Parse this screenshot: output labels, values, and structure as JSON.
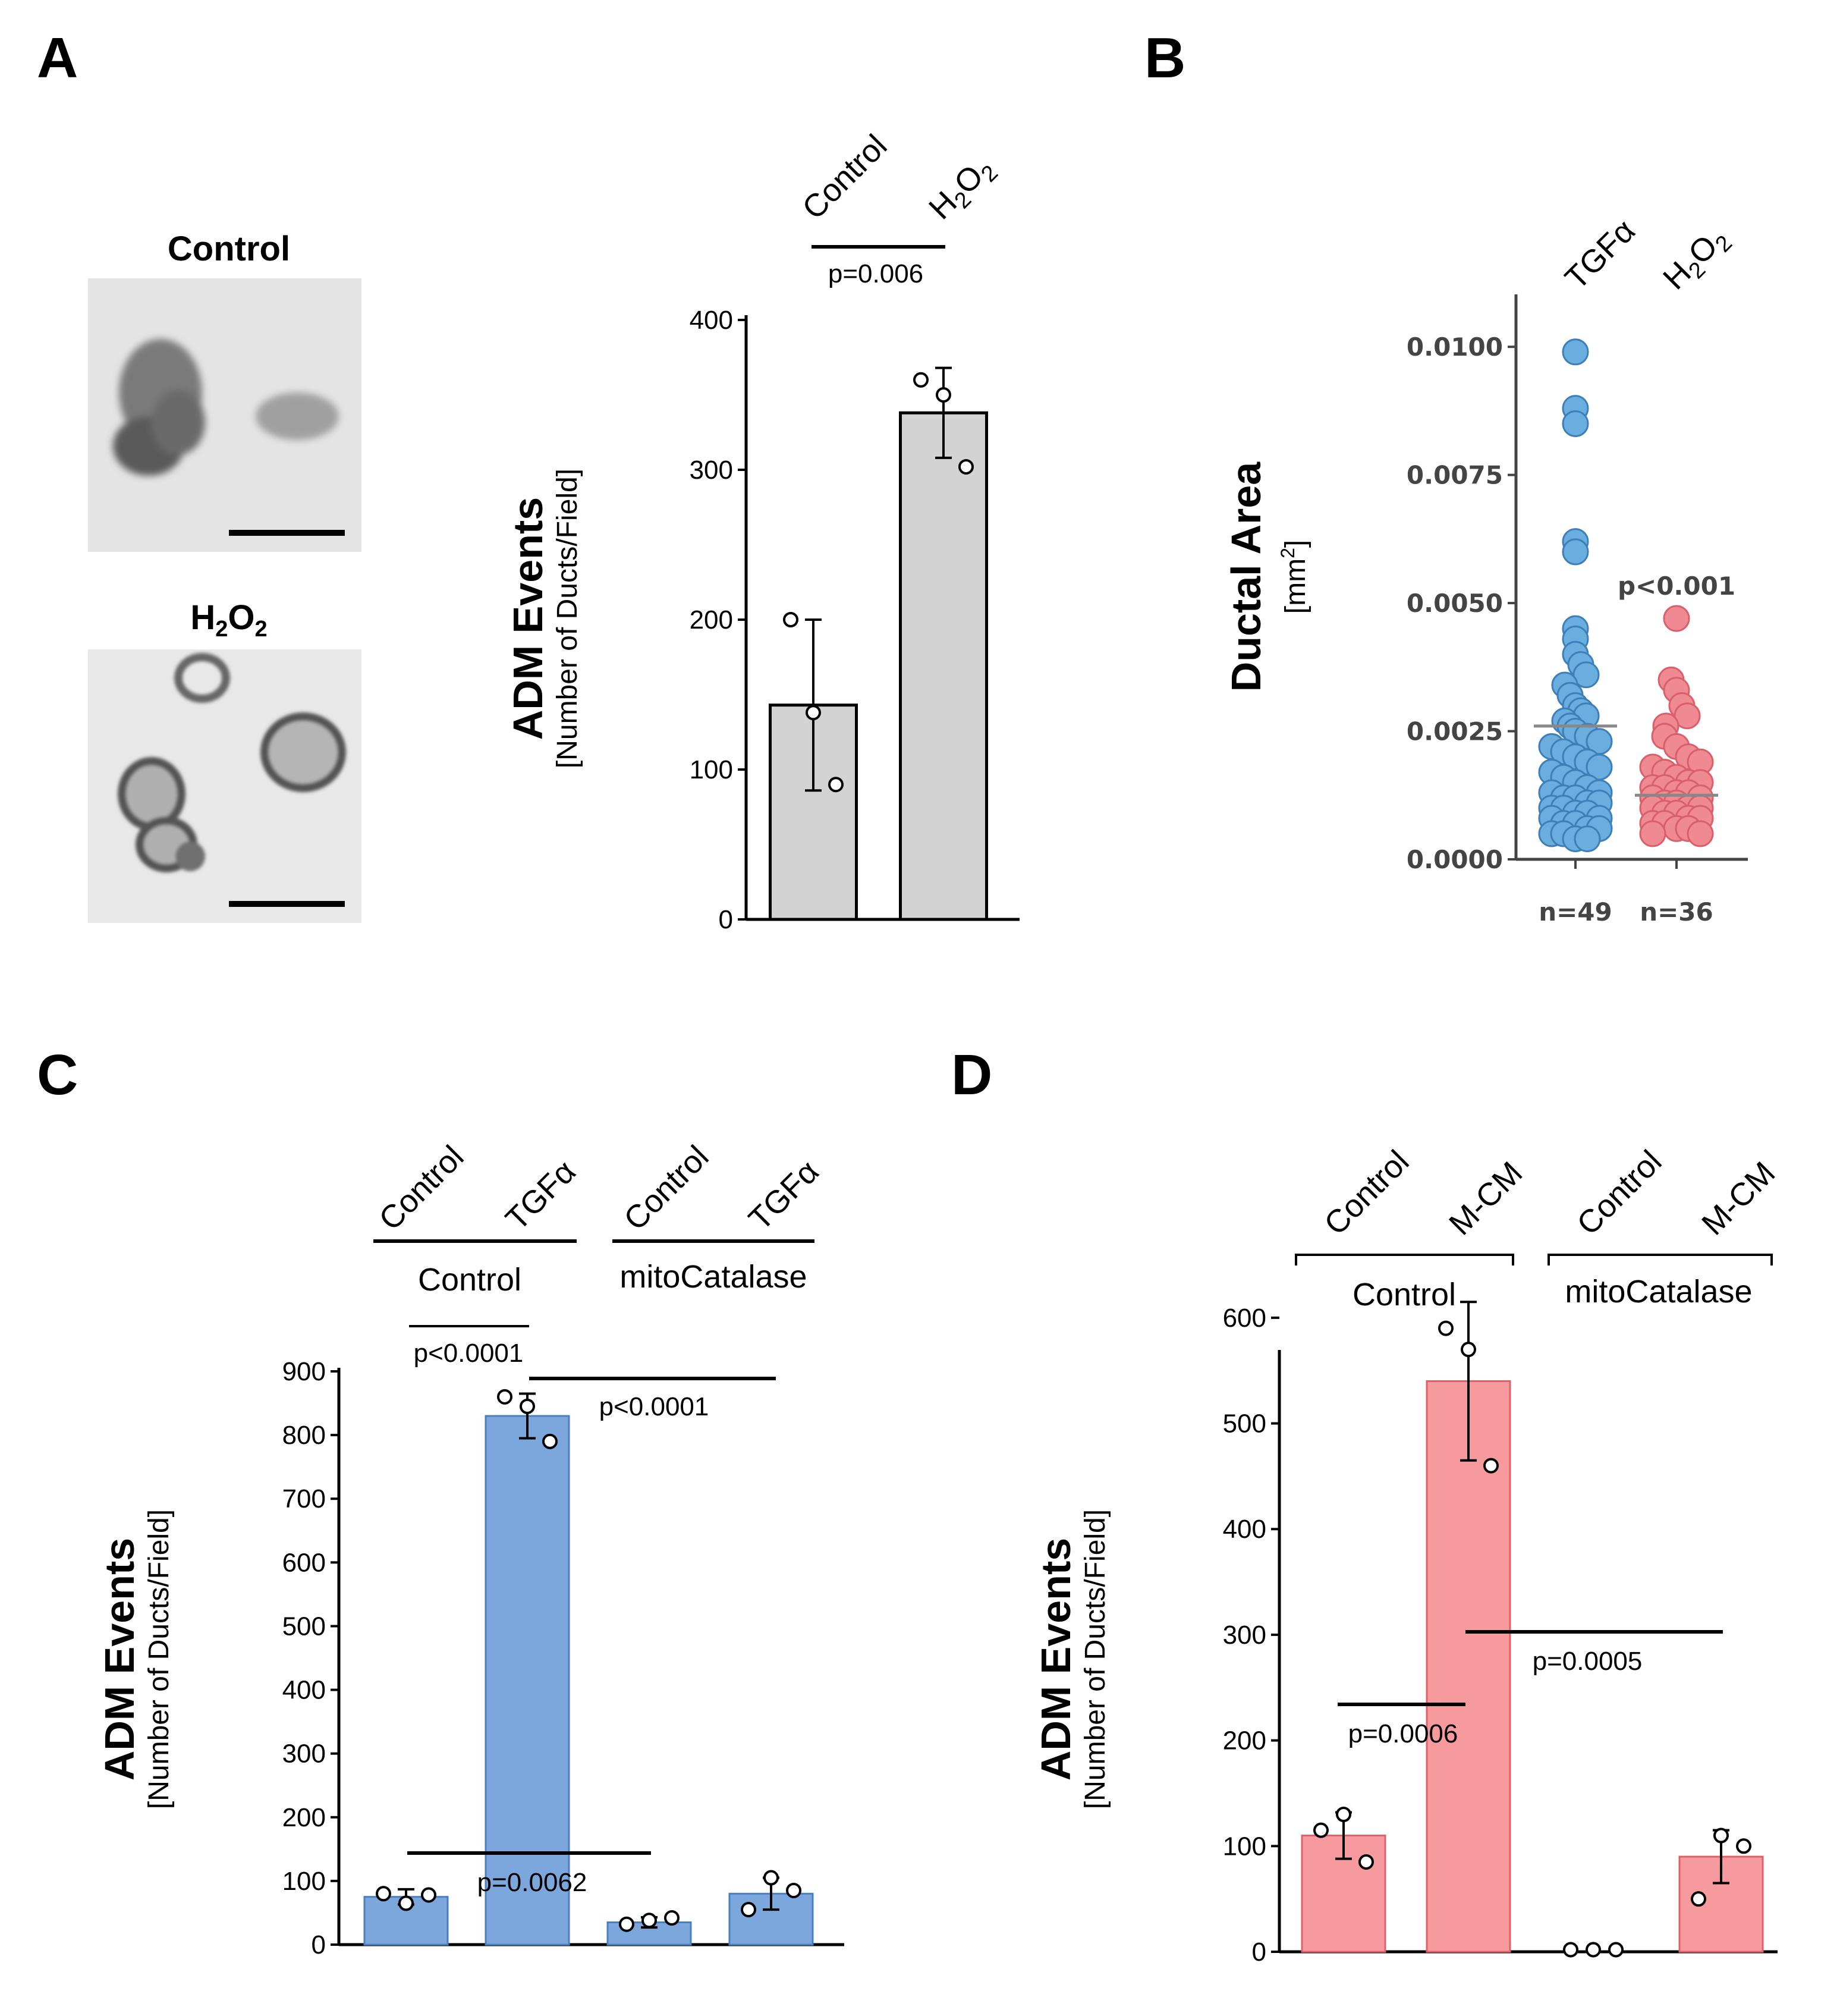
{
  "panels": {
    "a": {
      "letter": "A",
      "images": [
        {
          "label_main": "Control",
          "label_sub": ""
        },
        {
          "label_main": "H",
          "label_sub1": "2",
          "label_mid": "O",
          "label_sub2": "2"
        }
      ]
    },
    "b": {
      "letter": "B"
    },
    "c": {
      "letter": "C"
    },
    "d": {
      "letter": "D"
    }
  },
  "chart_data": [
    {
      "id": "A",
      "type": "bar",
      "categories": [
        "Control",
        "H2O2"
      ],
      "category_labels": [
        {
          "text": "Control"
        },
        {
          "main1": "H",
          "sub1": "2",
          "main2": "O",
          "sub2": "2"
        }
      ],
      "values": [
        143,
        338
      ],
      "errors": [
        57,
        30
      ],
      "points": [
        [
          200,
          138,
          90
        ],
        [
          360,
          350,
          302
        ]
      ],
      "ylim": [
        0,
        400
      ],
      "yticks": [
        0,
        100,
        200,
        300,
        400
      ],
      "ylabel": "ADM Events",
      "ylabel_sub": "[Number of Ducts/Field]",
      "bar_color": "#d3d3d3",
      "comparisons": [
        {
          "text": "p=0.006"
        }
      ]
    },
    {
      "id": "B",
      "type": "scatter",
      "categories": [
        "TGFα",
        "H2O2"
      ],
      "category_labels": [
        {
          "text": "TGFα"
        },
        {
          "main1": "H",
          "sub1": "2",
          "main2": "O",
          "sub2": "2"
        }
      ],
      "ylim": [
        0,
        0.011
      ],
      "yticks": [
        "0.0000",
        "0.0025",
        "0.0050",
        "0.0075",
        "0.0100"
      ],
      "ytick_values": [
        0,
        0.0025,
        0.005,
        0.0075,
        0.01
      ],
      "ylabel": "Ductal Area",
      "ylabel_unit_main": "[mm",
      "ylabel_unit_sup": "2",
      "ylabel_unit_end": "]",
      "medians": [
        0.0026,
        0.00125
      ],
      "counts": [
        "n=49",
        "n=36"
      ],
      "pvalue": "p<0.001",
      "colors": [
        "#6aaee0",
        "#f08a92"
      ],
      "series": [
        {
          "values": [
            0.0099,
            0.0088,
            0.0085,
            0.0062,
            0.006,
            0.0045,
            0.0043,
            0.004,
            0.0038,
            0.0036,
            0.0034,
            0.0032,
            0.003,
            0.0029,
            0.0028,
            0.0027,
            0.0026,
            0.0025,
            0.0024,
            0.0023,
            0.0022,
            0.0021,
            0.002,
            0.0019,
            0.0018,
            0.0017,
            0.0016,
            0.0015,
            0.0014,
            0.0013,
            0.0013,
            0.0012,
            0.0012,
            0.0011,
            0.0011,
            0.001,
            0.001,
            0.0009,
            0.0009,
            0.0008,
            0.0008,
            0.0007,
            0.0007,
            0.0006,
            0.0006,
            0.0005,
            0.0005,
            0.0004,
            0.0004
          ]
        },
        {
          "values": [
            0.0047,
            0.0035,
            0.0033,
            0.003,
            0.0028,
            0.0026,
            0.0024,
            0.0022,
            0.002,
            0.0019,
            0.0018,
            0.0017,
            0.0016,
            0.0015,
            0.0015,
            0.0014,
            0.0014,
            0.0013,
            0.0013,
            0.0012,
            0.0012,
            0.0011,
            0.0011,
            0.001,
            0.001,
            0.001,
            0.0009,
            0.0009,
            0.0008,
            0.0008,
            0.0007,
            0.0007,
            0.0006,
            0.0006,
            0.0005,
            0.0005
          ]
        }
      ]
    },
    {
      "id": "C",
      "type": "bar",
      "categories": [
        "Control",
        "TGFα",
        "Control",
        "TGFα"
      ],
      "groups": [
        "Control",
        "mitoCatalase"
      ],
      "values": [
        75,
        830,
        35,
        80
      ],
      "errors": [
        12,
        35,
        8,
        25
      ],
      "points": [
        [
          80,
          65,
          78
        ],
        [
          860,
          845,
          790
        ],
        [
          32,
          38,
          42
        ],
        [
          55,
          105,
          85
        ]
      ],
      "ylim": [
        0,
        900
      ],
      "yticks": [
        0,
        100,
        200,
        300,
        400,
        500,
        600,
        700,
        800,
        900
      ],
      "ylabel": "ADM Events",
      "ylabel_sub": "[Number of Ducts/Field]",
      "bar_color": "#7ba7dc",
      "bar_edge": "#4a7fc0",
      "comparisons": [
        {
          "text": "p<0.0001"
        },
        {
          "text": "p<0.0001"
        },
        {
          "text": "p=0.0062"
        }
      ]
    },
    {
      "id": "D",
      "type": "bar",
      "categories": [
        "Control",
        "M-CM",
        "Control",
        "M-CM"
      ],
      "groups": [
        "Control",
        "mitoCatalase"
      ],
      "values": [
        110,
        540,
        0,
        90
      ],
      "errors": [
        22,
        75,
        0,
        25
      ],
      "points": [
        [
          115,
          130,
          85
        ],
        [
          590,
          570,
          460
        ],
        [
          2,
          2,
          2
        ],
        [
          50,
          110,
          100
        ]
      ],
      "ylim": [
        0,
        650
      ],
      "yticks": [
        0,
        100,
        200,
        300,
        400,
        500,
        600
      ],
      "ylabel": "ADM Events",
      "ylabel_sub": "[Number of Ducts/Field]",
      "bar_color": "#f79a9e",
      "bar_edge": "#e0606a",
      "comparisons": [
        {
          "text": "p=0.0006"
        },
        {
          "text": "p=0.0005"
        }
      ]
    }
  ]
}
